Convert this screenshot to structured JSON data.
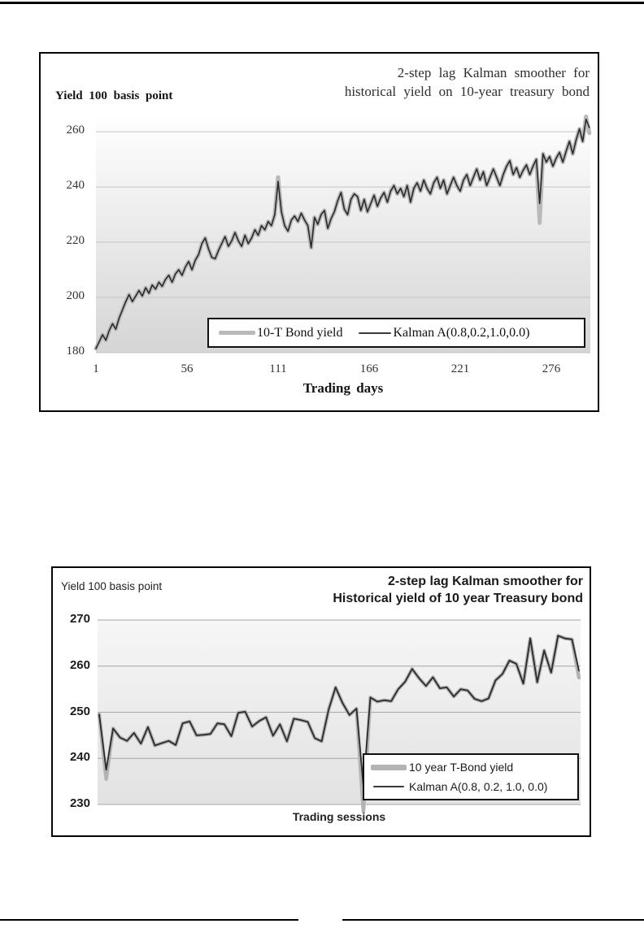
{
  "chart_data": [
    {
      "type": "line",
      "title_lines": [
        "2-step lag Kalman smoother for",
        "historical yield on 10-year treasury bond"
      ],
      "y_caption": "Yield 100 basis point",
      "xlabel": "Trading days",
      "ylim": [
        180,
        266.5
      ],
      "yticks": [
        180,
        200,
        220,
        240,
        260
      ],
      "xticks": [
        "1",
        "56",
        "111",
        "166",
        "221",
        "276"
      ],
      "grid": "horizontal",
      "legend_position": "inside-bottom",
      "plot_bg": [
        "#ffffff",
        "#d5d5d5"
      ],
      "gridline_color": "#c4c4c4",
      "x": [
        1,
        3,
        5,
        7,
        9,
        11,
        13,
        15,
        17,
        19,
        21,
        23,
        25,
        27,
        29,
        31,
        33,
        35,
        37,
        39,
        41,
        43,
        45,
        47,
        49,
        51,
        53,
        55,
        57,
        59,
        61,
        63,
        65,
        67,
        69,
        71,
        73,
        75,
        77,
        79,
        81,
        83,
        85,
        87,
        89,
        91,
        93,
        95,
        97,
        99,
        101,
        103,
        105,
        107,
        109,
        111,
        113,
        115,
        117,
        119,
        121,
        123,
        125,
        127,
        129,
        131,
        133,
        135,
        137,
        139,
        141,
        143,
        145,
        147,
        149,
        151,
        153,
        155,
        157,
        159,
        161,
        163,
        165,
        167,
        169,
        171,
        173,
        175,
        177,
        179,
        181,
        183,
        185,
        187,
        189,
        191,
        193,
        195,
        197,
        199,
        201,
        203,
        205,
        207,
        209,
        211,
        213,
        215,
        217,
        219,
        221,
        223,
        225,
        227,
        229,
        231,
        233,
        235,
        237,
        239,
        241,
        243,
        245,
        247,
        249,
        251,
        253,
        255,
        257,
        259,
        261,
        263,
        265,
        267,
        269,
        271,
        273,
        275,
        277,
        279,
        281,
        283,
        285,
        287,
        289,
        291,
        293,
        295,
        297,
        299
      ],
      "series": [
        {
          "name": "10-T Bond yield",
          "color": "#b9b9b9",
          "width": 5,
          "values": [
            181.5,
            184,
            186.5,
            184.5,
            188,
            190.5,
            188.5,
            192.5,
            195.5,
            198.5,
            201,
            198.5,
            200.5,
            202.5,
            200.5,
            203.5,
            201.5,
            204.5,
            203,
            205.5,
            204,
            206.5,
            208,
            205.5,
            208.5,
            210,
            208,
            211,
            213,
            210,
            213.5,
            215.5,
            219.5,
            221.5,
            217.5,
            214.5,
            214,
            217,
            219.5,
            222,
            218.5,
            220.5,
            223.5,
            220.5,
            218.5,
            222.5,
            219.5,
            221.5,
            224.5,
            222.5,
            226,
            224.5,
            227.5,
            226,
            230,
            243.5,
            231,
            226,
            224,
            228,
            229.5,
            227.5,
            230.5,
            228,
            226,
            218,
            229,
            226.5,
            230,
            231.5,
            225,
            228.5,
            231,
            235,
            238,
            232,
            230,
            235.5,
            237.5,
            236.5,
            231.5,
            235.5,
            231,
            234,
            237,
            233,
            236,
            238,
            234.5,
            238.5,
            240.5,
            237.5,
            239.5,
            236.5,
            240.5,
            234.5,
            239.5,
            241.5,
            238.5,
            242.5,
            239.5,
            237.5,
            241.5,
            243.5,
            239.5,
            242.5,
            237.5,
            240.5,
            243.5,
            240.5,
            238.5,
            242.5,
            244.5,
            240.5,
            243.5,
            246.5,
            242.5,
            245.5,
            240.5,
            243.5,
            246.5,
            243.5,
            240.5,
            244.5,
            247.5,
            249.5,
            244.5,
            247,
            243.5,
            246,
            248,
            244.5,
            247.5,
            250,
            227,
            252,
            249,
            251,
            247.5,
            250.5,
            252.5,
            249,
            253,
            256.5,
            252,
            257,
            261,
            256.5,
            265.5,
            259.5
          ]
        },
        {
          "name": "Kalman A(0.8,0.2,1.0,0.0)",
          "color": "#2a2a2a",
          "width": 1.6,
          "values": [
            181.5,
            184,
            186.5,
            184.5,
            188,
            190.5,
            188.5,
            192.5,
            195.5,
            198.5,
            201,
            198.5,
            200.5,
            202.5,
            200.5,
            203.5,
            201.5,
            204.5,
            203,
            205.5,
            204,
            206.5,
            208,
            205.5,
            208.5,
            210,
            208,
            211,
            213,
            210,
            213.5,
            215.5,
            219.5,
            221.5,
            217.5,
            214.5,
            214,
            217,
            219.5,
            222,
            218.5,
            220.5,
            223.5,
            220.5,
            218.5,
            222.5,
            219.5,
            221.5,
            224.5,
            222.5,
            226,
            224.5,
            227.5,
            226,
            230,
            242,
            231,
            226,
            224,
            228,
            229.5,
            227.5,
            230.5,
            228,
            226,
            218,
            229,
            226.5,
            230,
            231.5,
            225,
            228.5,
            231,
            235,
            238,
            232,
            230,
            235.5,
            237.5,
            236.5,
            231.5,
            235.5,
            231,
            234,
            237,
            233,
            236,
            238,
            234.5,
            238.5,
            240.5,
            237.5,
            239.5,
            236.5,
            240.5,
            234.5,
            239.5,
            241.5,
            238.5,
            242.5,
            239.5,
            237.5,
            241.5,
            243.5,
            239.5,
            242.5,
            237.5,
            240.5,
            243.5,
            240.5,
            238.5,
            242.5,
            244.5,
            240.5,
            243.5,
            246.5,
            242.5,
            245.5,
            240.5,
            243.5,
            246.5,
            243.5,
            240.5,
            244.5,
            247.5,
            249.5,
            244.5,
            247,
            243.5,
            246,
            248,
            244.5,
            247.5,
            250,
            234,
            252,
            249,
            251,
            247.5,
            250.5,
            252.5,
            249,
            253,
            256.5,
            252,
            257,
            261,
            256.5,
            264.5,
            261.5
          ]
        }
      ]
    },
    {
      "type": "line",
      "title_lines": [
        "2-step lag Kalman smoother for",
        "Historical yield of 10 year Treasury bond"
      ],
      "y_caption": "Yield 100 basis point",
      "xlabel": "Trading sessions",
      "ylim": [
        230,
        270
      ],
      "yticks": [
        230,
        240,
        250,
        260,
        270
      ],
      "xticks": [],
      "grid": "horizontal",
      "legend_position": "inside-bottom-right",
      "plot_bg": [
        "#f6f6f6",
        "#e2e2e2"
      ],
      "gridline_color": "#a6a6a6",
      "x": [
        1,
        2,
        3,
        4,
        5,
        6,
        7,
        8,
        9,
        10,
        11,
        12,
        13,
        14,
        15,
        16,
        17,
        18,
        19,
        20,
        21,
        22,
        23,
        24,
        25,
        26,
        27,
        28,
        29,
        30,
        31,
        32,
        33,
        34,
        35,
        36,
        37,
        38,
        39,
        40,
        41,
        42,
        43,
        44,
        45,
        46,
        47,
        48,
        49,
        50,
        51,
        52,
        53,
        54,
        55,
        56,
        57,
        58,
        59,
        60,
        61,
        62,
        63,
        64,
        65,
        66,
        67,
        68,
        69,
        70
      ],
      "series": [
        {
          "name": "10 year T-Bond yield",
          "color": "#b3b3b3",
          "width": 4.5,
          "values": [
            249.5,
            235.5,
            246.5,
            244.5,
            243.8,
            245.5,
            243.2,
            246.8,
            242.8,
            243.3,
            243.8,
            242.9,
            247.6,
            248,
            245,
            245.1,
            245.3,
            247.6,
            247.4,
            244.8,
            249.9,
            250.1,
            246.9,
            248.1,
            248.9,
            244.9,
            247.4,
            243.7,
            248.6,
            248.3,
            247.9,
            244.4,
            243.7,
            250.6,
            255.4,
            252,
            249.4,
            250.8,
            228.5,
            253.2,
            252.3,
            252.6,
            252.4,
            255,
            256.6,
            259.4,
            257.4,
            255.7,
            257.6,
            255.2,
            255.4,
            253.4,
            255,
            254.7,
            252.9,
            252.4,
            253,
            256.9,
            258.3,
            261.2,
            260.5,
            256.2,
            266,
            256.5,
            263.4,
            258.6,
            266.6,
            266,
            265.8,
            257.5
          ]
        },
        {
          "name": "Kalman A(0.8, 0.2, 1.0, 0.0)",
          "color": "#2b2b2b",
          "width": 1.8,
          "values": [
            249.5,
            237.5,
            246.5,
            244.5,
            243.8,
            245.5,
            243.2,
            246.8,
            242.8,
            243.3,
            243.8,
            242.9,
            247.6,
            248,
            245,
            245.1,
            245.3,
            247.6,
            247.4,
            244.8,
            249.9,
            250.1,
            246.9,
            248.1,
            248.9,
            244.9,
            247.4,
            243.7,
            248.6,
            248.3,
            247.9,
            244.4,
            243.7,
            250.6,
            255.4,
            252,
            249.4,
            250.8,
            234,
            253.2,
            252.3,
            252.6,
            252.4,
            255,
            256.6,
            259.4,
            257.4,
            255.7,
            257.6,
            255.2,
            255.4,
            253.4,
            255,
            254.7,
            252.9,
            252.4,
            253,
            256.9,
            258.3,
            261.2,
            260.5,
            256.2,
            266,
            256.5,
            263.4,
            258.6,
            266.6,
            266,
            265.8,
            259
          ]
        }
      ]
    }
  ]
}
